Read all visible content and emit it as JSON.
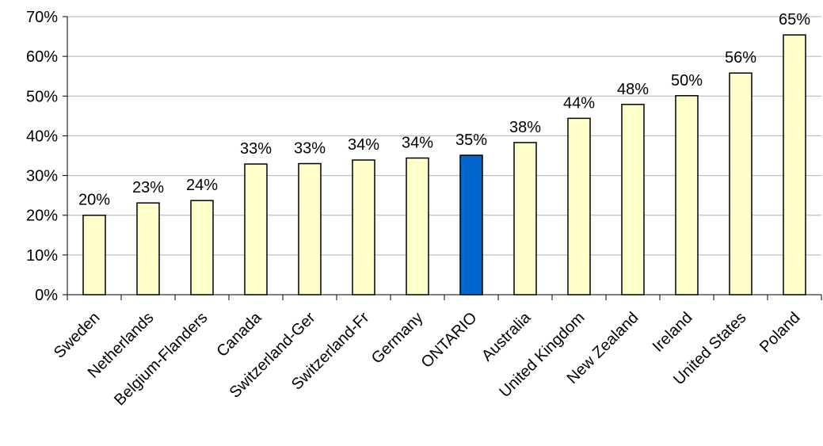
{
  "chart_data": {
    "type": "bar",
    "categories": [
      "Sweden",
      "Netherlands",
      "Belgium-Flanders",
      "Canada",
      "Switzerland-Ger",
      "Switzerland-Fr",
      "Germany",
      "ONTARIO",
      "Australia",
      "United Kingdom",
      "New Zealand",
      "Ireland",
      "United States",
      "Poland"
    ],
    "values": [
      20.0,
      23.1,
      23.7,
      32.9,
      33.0,
      33.9,
      34.4,
      35.1,
      38.3,
      44.4,
      47.9,
      50.1,
      55.8,
      65.4
    ],
    "value_labels": [
      "20%",
      "23%",
      "24%",
      "33%",
      "33%",
      "34%",
      "34%",
      "35%",
      "38%",
      "44%",
      "48%",
      "50%",
      "56%",
      "65%"
    ],
    "colors": [
      "#ffffcc",
      "#ffffcc",
      "#ffffcc",
      "#ffffcc",
      "#ffffcc",
      "#ffffcc",
      "#ffffcc",
      "#0066cc",
      "#ffffcc",
      "#ffffcc",
      "#ffffcc",
      "#ffffcc",
      "#ffffcc",
      "#ffffcc"
    ],
    "ylim": [
      0,
      70
    ],
    "yticks": [
      {
        "value": 0,
        "label": "0%"
      },
      {
        "value": 10,
        "label": "10%"
      },
      {
        "value": 20,
        "label": "20%"
      },
      {
        "value": 30,
        "label": "30%"
      },
      {
        "value": 40,
        "label": "40%"
      },
      {
        "value": 50,
        "label": "50%"
      },
      {
        "value": 60,
        "label": "60%"
      },
      {
        "value": 70,
        "label": "70%"
      }
    ],
    "grid": true
  }
}
